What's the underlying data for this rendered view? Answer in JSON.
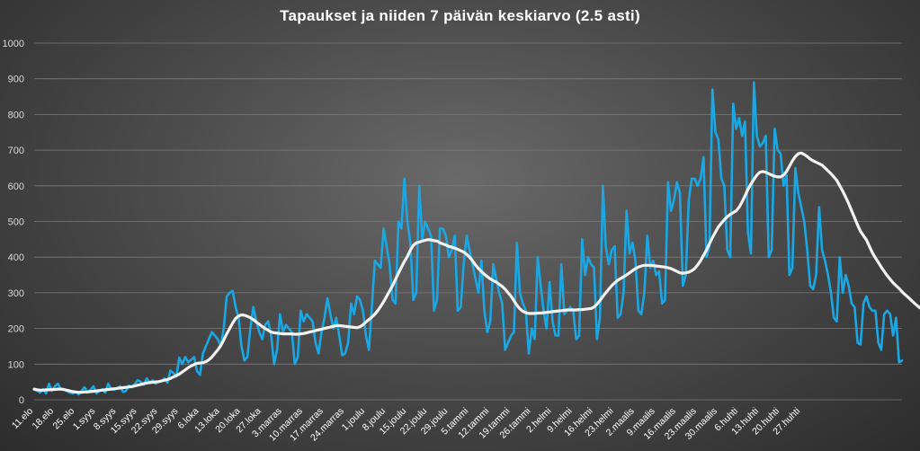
{
  "chart_data": {
    "type": "line",
    "title": "Tapaukset ja niiden 7 päivän keskiarvo (2.5 asti)",
    "xlabel": "",
    "ylabel": "",
    "ylim": [
      0,
      1000
    ],
    "yticks": [
      0,
      100,
      200,
      300,
      400,
      500,
      600,
      700,
      800,
      900,
      1000
    ],
    "grid": true,
    "legend": "none",
    "x_tick_labels": [
      "11.elo",
      "18.elo",
      "25.elo",
      "1.syys",
      "8.syys",
      "15.syys",
      "22.syys",
      "29.syys",
      "6.loka",
      "13.loka",
      "20.loka",
      "27.loka",
      "3.marras",
      "10.marras",
      "17.marras",
      "24.marras",
      "1.joulu",
      "8.joulu",
      "15.joulu",
      "22.joulu",
      "29.joulu",
      "5.tammi",
      "12.tammi",
      "19.tammi",
      "26.tammi",
      "2.helmi",
      "9.helmi",
      "16.helmi",
      "23.helmi",
      "2.maalis",
      "9.maalis",
      "16.maalis",
      "23.maalis",
      "30.maalis",
      "6.huhti",
      "13.huhti",
      "20.huhti",
      "27.huhti"
    ],
    "colors": {
      "daily": "#1aa7e3",
      "average": "#f2f2f2",
      "grid": "#7a7a7a"
    },
    "series": [
      {
        "key": "daily",
        "values": [
          28,
          26,
          20,
          30,
          18,
          45,
          25,
          38,
          45,
          30,
          28,
          25,
          20,
          18,
          22,
          15,
          25,
          35,
          22,
          28,
          38,
          18,
          25,
          30,
          20,
          45,
          30,
          28,
          32,
          38,
          22,
          25,
          40,
          35,
          45,
          55,
          50,
          42,
          60,
          48,
          55,
          45,
          50,
          52,
          60,
          48,
          82,
          75,
          65,
          118,
          100,
          120,
          105,
          112,
          120,
          80,
          70,
          130,
          150,
          170,
          190,
          180,
          170,
          150,
          200,
          290,
          300,
          305,
          260,
          230,
          150,
          110,
          120,
          200,
          260,
          220,
          190,
          170,
          210,
          220,
          180,
          100,
          140,
          240,
          190,
          210,
          200,
          190,
          100,
          120,
          250,
          220,
          240,
          230,
          220,
          160,
          130,
          190,
          230,
          285,
          240,
          200,
          230,
          180,
          125,
          130,
          160,
          270,
          240,
          290,
          280,
          250,
          180,
          140,
          260,
          390,
          380,
          370,
          480,
          430,
          380,
          280,
          270,
          500,
          480,
          620,
          500,
          440,
          280,
          300,
          600,
          450,
          500,
          480,
          460,
          250,
          280,
          480,
          480,
          460,
          400,
          420,
          460,
          250,
          260,
          380,
          460,
          420,
          380,
          340,
          300,
          390,
          250,
          190,
          220,
          380,
          340,
          300,
          270,
          140,
          160,
          180,
          190,
          440,
          300,
          270,
          250,
          130,
          200,
          170,
          400,
          320,
          250,
          200,
          330,
          220,
          180,
          180,
          380,
          240,
          250,
          260,
          250,
          170,
          180,
          450,
          350,
          400,
          380,
          370,
          170,
          230,
          600,
          430,
          380,
          420,
          430,
          230,
          240,
          300,
          530,
          410,
          440,
          390,
          250,
          240,
          300,
          460,
          370,
          390,
          350,
          360,
          270,
          280,
          610,
          530,
          560,
          610,
          580,
          320,
          350,
          560,
          620,
          620,
          600,
          620,
          680,
          400,
          430,
          870,
          750,
          730,
          620,
          600,
          420,
          400,
          830,
          760,
          790,
          740,
          780,
          470,
          410,
          890,
          740,
          710,
          720,
          740,
          400,
          420,
          760,
          700,
          690,
          600,
          630,
          350,
          370,
          650,
          580,
          540,
          500,
          420,
          320,
          310,
          350,
          540,
          420,
          390,
          350,
          300,
          230,
          220,
          400,
          300,
          350,
          320,
          270,
          260,
          160,
          155,
          270,
          290,
          260,
          250,
          250,
          160,
          140,
          240,
          250,
          240,
          180,
          230,
          105,
          110
        ]
      },
      {
        "key": "average",
        "values": [
          30,
          28,
          27,
          27,
          28,
          28,
          29,
          29,
          30,
          30,
          29,
          27,
          25,
          23,
          22,
          21,
          21,
          22,
          22,
          23,
          24,
          25,
          26,
          27,
          28,
          29,
          30,
          31,
          32,
          33,
          34,
          35,
          36,
          37,
          39,
          41,
          43,
          45,
          47,
          48,
          49,
          50,
          51,
          53,
          55,
          57,
          60,
          64,
          68,
          72,
          78,
          84,
          90,
          95,
          99,
          102,
          103,
          104,
          107,
          112,
          120,
          130,
          140,
          152,
          168,
          185,
          200,
          215,
          228,
          235,
          238,
          237,
          234,
          230,
          225,
          218,
          212,
          205,
          200,
          195,
          190,
          188,
          187,
          186,
          185,
          185,
          185,
          185,
          184,
          184,
          185,
          186,
          188,
          190,
          192,
          194,
          196,
          198,
          200,
          202,
          204,
          206,
          208,
          208,
          207,
          206,
          205,
          204,
          203,
          202,
          205,
          210,
          218,
          225,
          232,
          240,
          250,
          262,
          275,
          290,
          305,
          320,
          338,
          355,
          372,
          388,
          402,
          420,
          433,
          440,
          442,
          445,
          447,
          449,
          448,
          446,
          445,
          440,
          437,
          434,
          430,
          428,
          425,
          422,
          418,
          414,
          408,
          400,
          390,
          378,
          368,
          360,
          352,
          345,
          339,
          334,
          330,
          324,
          318,
          310,
          300,
          290,
          278,
          265,
          255,
          248,
          244,
          242,
          242,
          242,
          243,
          243,
          244,
          245,
          246,
          247,
          248,
          249,
          250,
          251,
          252,
          252,
          252,
          252,
          253,
          253,
          254,
          255,
          256,
          260,
          268,
          278,
          290,
          300,
          310,
          320,
          328,
          335,
          340,
          345,
          350,
          356,
          362,
          368,
          372,
          375,
          377,
          377,
          377,
          376,
          375,
          374,
          373,
          372,
          370,
          368,
          364,
          360,
          356,
          355,
          356,
          358,
          362,
          368,
          378,
          390,
          405,
          420,
          438,
          455,
          470,
          485,
          495,
          505,
          513,
          520,
          525,
          530,
          540,
          555,
          572,
          590,
          605,
          618,
          630,
          638,
          640,
          638,
          634,
          630,
          627,
          625,
          625,
          630,
          640,
          655,
          670,
          682,
          690,
          692,
          688,
          682,
          675,
          670,
          666,
          662,
          658,
          650,
          642,
          634,
          625,
          615,
          600,
          585,
          568,
          550,
          530,
          510,
          490,
          472,
          460,
          448,
          430,
          412,
          398,
          385,
          372,
          360,
          348,
          338,
          328,
          320,
          312,
          303,
          295,
          288,
          280,
          272,
          265,
          258,
          252,
          248,
          245,
          242,
          240,
          238,
          236,
          234,
          232,
          228,
          224,
          218,
          210,
          200,
          192,
          188
        ]
      }
    ]
  }
}
